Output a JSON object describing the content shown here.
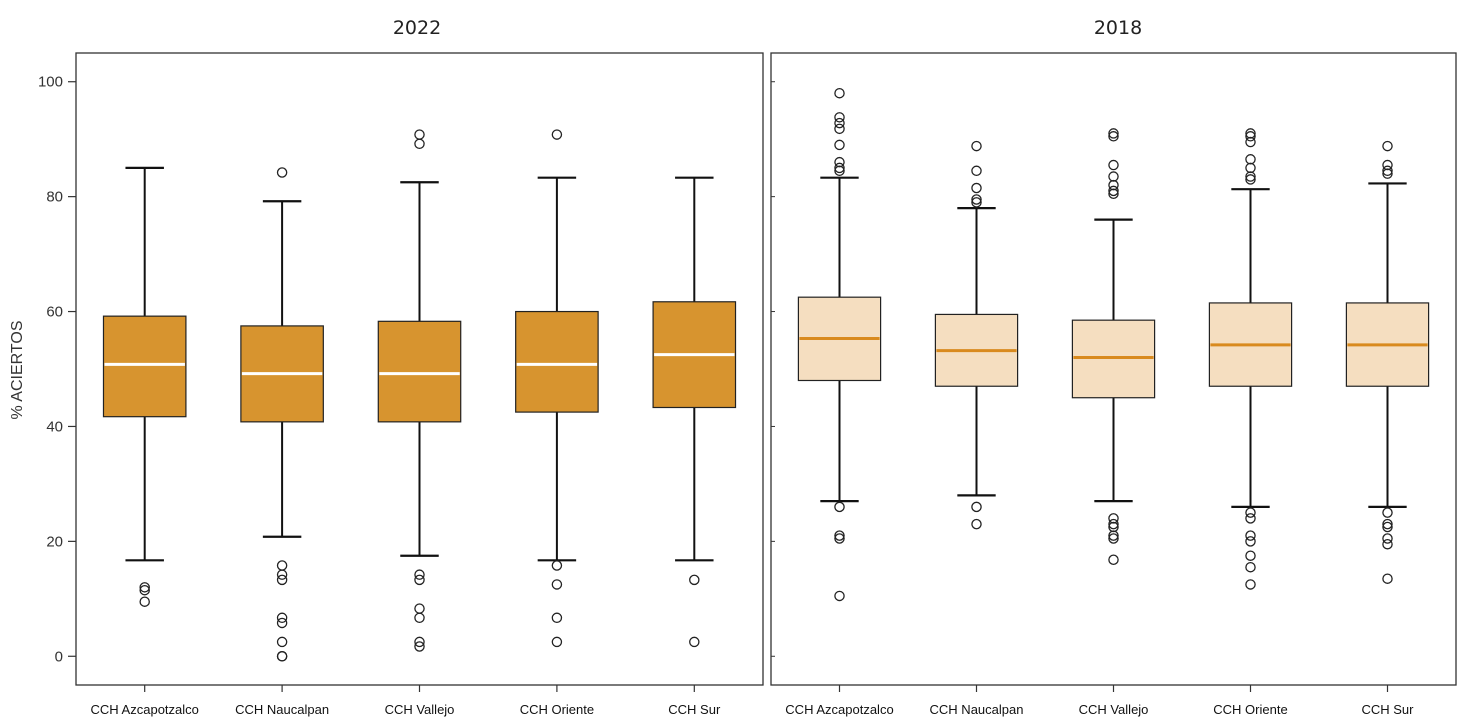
{
  "chart_data": [
    {
      "type": "box",
      "title": "2022",
      "ylabel": "% ACIERTOS",
      "ylim": [
        -5,
        105
      ],
      "yticks": [
        "0",
        "20",
        "40",
        "60",
        "80",
        "100"
      ],
      "colors": {
        "box": "#D7942F",
        "median": "#FFFFFF"
      },
      "categories": [
        "CCH Azcapotzalco",
        "CCH Naucalpan",
        "CCH Vallejo",
        "CCH Oriente",
        "CCH Sur"
      ],
      "boxes": [
        {
          "whisker_low": 16.7,
          "q1": 41.7,
          "median": 50.8,
          "q3": 59.2,
          "whisker_high": 85.0,
          "outliers": [
            12.0,
            11.5,
            9.5
          ]
        },
        {
          "whisker_low": 20.8,
          "q1": 40.8,
          "median": 49.2,
          "q3": 57.5,
          "whisker_high": 79.2,
          "outliers": [
            84.2,
            15.8,
            14.2,
            13.3,
            6.7,
            5.8,
            2.5,
            0.0,
            0.0
          ]
        },
        {
          "whisker_low": 17.5,
          "q1": 40.8,
          "median": 49.2,
          "q3": 58.3,
          "whisker_high": 82.5,
          "outliers": [
            90.8,
            89.2,
            14.2,
            13.3,
            8.3,
            6.7,
            2.5,
            1.7
          ]
        },
        {
          "whisker_low": 16.7,
          "q1": 42.5,
          "median": 50.8,
          "q3": 60.0,
          "whisker_high": 83.3,
          "outliers": [
            90.8,
            15.8,
            12.5,
            6.7,
            2.5
          ]
        },
        {
          "whisker_low": 16.7,
          "q1": 43.3,
          "median": 52.5,
          "q3": 61.7,
          "whisker_high": 83.3,
          "outliers": [
            13.3,
            2.5
          ]
        }
      ]
    },
    {
      "type": "box",
      "title": "2018",
      "ylim": [
        -5,
        105
      ],
      "colors": {
        "box": "#F5DEC0",
        "median": "#D98A1E"
      },
      "categories": [
        "CCH Azcapotzalco",
        "CCH Naucalpan",
        "CCH Vallejo",
        "CCH Oriente",
        "CCH Sur"
      ],
      "boxes": [
        {
          "whisker_low": 27.0,
          "q1": 48.0,
          "median": 55.3,
          "q3": 62.5,
          "whisker_high": 83.3,
          "outliers": [
            98.0,
            93.8,
            92.8,
            91.8,
            89.0,
            86.0,
            85.0,
            84.5,
            26.0,
            21.0,
            20.5,
            10.5
          ]
        },
        {
          "whisker_low": 28.0,
          "q1": 47.0,
          "median": 53.2,
          "q3": 59.5,
          "whisker_high": 78.0,
          "outliers": [
            88.8,
            84.5,
            81.5,
            79.5,
            79.0,
            26.0,
            23.0
          ]
        },
        {
          "whisker_low": 27.0,
          "q1": 45.0,
          "median": 52.0,
          "q3": 58.5,
          "whisker_high": 76.0,
          "outliers": [
            91.0,
            90.5,
            85.5,
            83.5,
            82.0,
            81.0,
            80.5,
            24.0,
            23.0,
            22.5,
            21.0,
            20.5,
            16.8
          ]
        },
        {
          "whisker_low": 26.0,
          "q1": 47.0,
          "median": 54.2,
          "q3": 61.5,
          "whisker_high": 81.3,
          "outliers": [
            91.0,
            90.5,
            89.5,
            86.5,
            85.0,
            83.5,
            83.0,
            25.0,
            24.0,
            21.0,
            20.0,
            17.5,
            15.5,
            12.5
          ]
        },
        {
          "whisker_low": 26.0,
          "q1": 47.0,
          "median": 54.2,
          "q3": 61.5,
          "whisker_high": 82.3,
          "outliers": [
            88.8,
            85.5,
            84.5,
            84.0,
            25.0,
            23.0,
            22.5,
            20.5,
            19.5,
            13.5
          ]
        }
      ]
    }
  ]
}
